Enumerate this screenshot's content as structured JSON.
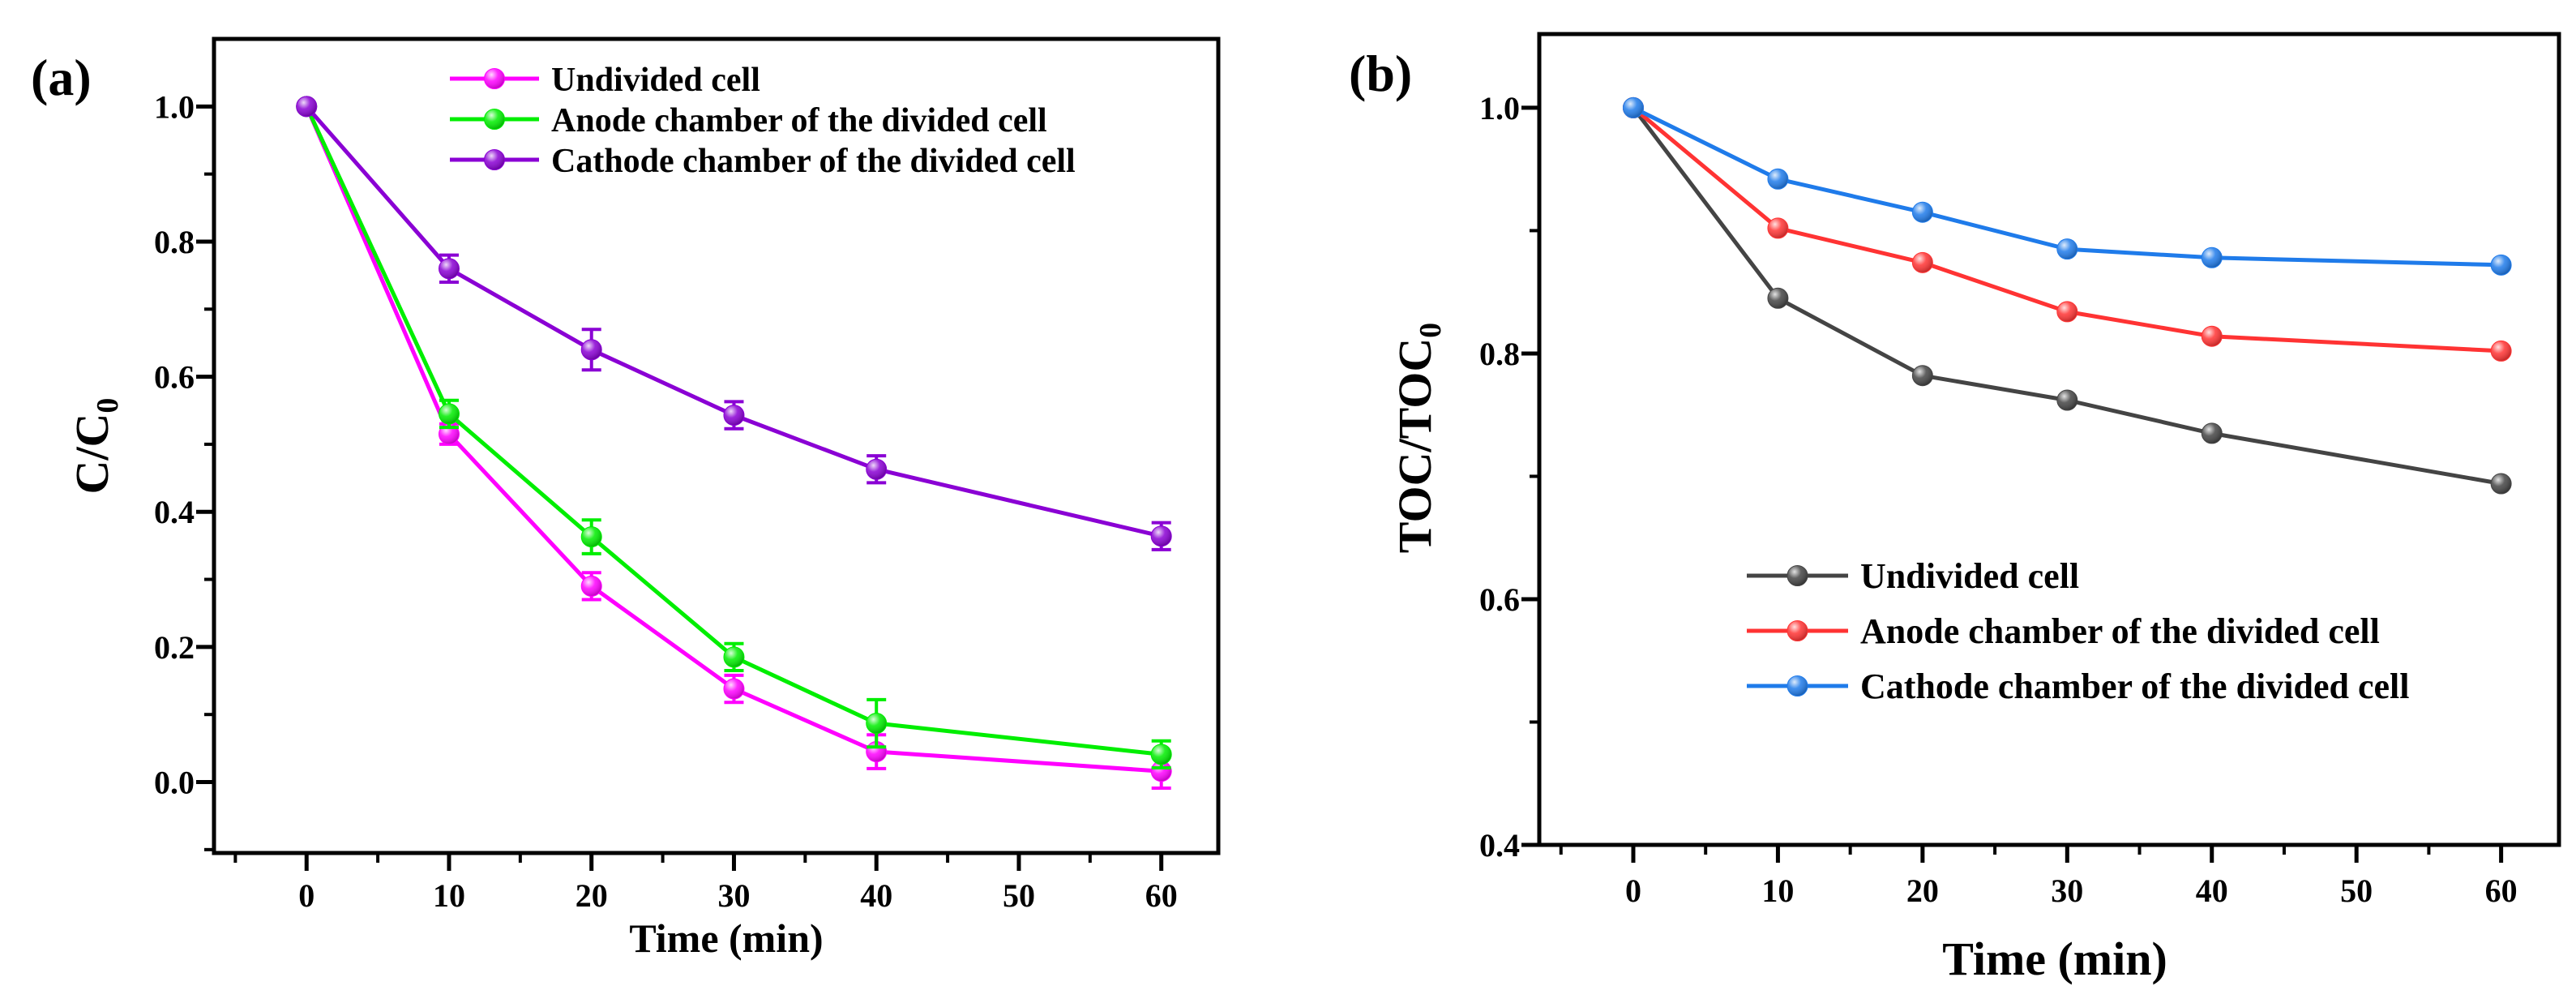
{
  "chart_data": [
    {
      "type": "line",
      "panel_label": "(a)",
      "xlabel": "Time (min)",
      "ylabel": "C/C",
      "ylabel_sub": "0",
      "xlim": [
        -6.5,
        64
      ],
      "ylim": [
        -0.105,
        1.1
      ],
      "xticks": [
        0,
        10,
        20,
        30,
        40,
        50,
        60
      ],
      "yticks": [
        0.0,
        0.2,
        0.4,
        0.6,
        0.8,
        1.0
      ],
      "ytick_labels": [
        "0.0",
        "0.2",
        "0.4",
        "0.6",
        "0.8",
        "1.0"
      ],
      "legend_position": "top",
      "x": [
        0,
        10,
        20,
        30,
        40,
        60
      ],
      "series": [
        {
          "name": "Undivided cell",
          "color": "#ff00ff",
          "values": [
            1.0,
            0.515,
            0.29,
            0.138,
            0.045,
            0.016
          ],
          "errors": [
            0,
            0.015,
            0.02,
            0.02,
            0.025,
            0.025
          ]
        },
        {
          "name": "Anode chamber of the divided cell",
          "color": "#00ee00",
          "values": [
            1.0,
            0.545,
            0.363,
            0.185,
            0.087,
            0.041
          ],
          "errors": [
            0,
            0.02,
            0.025,
            0.02,
            0.035,
            0.02
          ]
        },
        {
          "name": "Cathode chamber of the divided cell",
          "color": "#8a00d4",
          "values": [
            1.0,
            0.76,
            0.64,
            0.543,
            0.463,
            0.364
          ],
          "errors": [
            0,
            0.02,
            0.03,
            0.02,
            0.02,
            0.02
          ]
        }
      ]
    },
    {
      "type": "line",
      "panel_label": "(b)",
      "xlabel": "Time (min)",
      "ylabel": "TOC/TOC",
      "ylabel_sub": "0",
      "xlim": [
        -6.5,
        64
      ],
      "ylim": [
        0.4,
        1.06
      ],
      "xticks": [
        0,
        10,
        20,
        30,
        40,
        50,
        60
      ],
      "yticks": [
        0.4,
        0.6,
        0.8,
        1.0
      ],
      "ytick_labels": [
        "0.4",
        "0.6",
        "0.8",
        "1.0"
      ],
      "legend_position": "bottom-center",
      "x": [
        0,
        10,
        20,
        30,
        40,
        60
      ],
      "series": [
        {
          "name": "Undivided cell",
          "color": "#444444",
          "values": [
            1.0,
            0.845,
            0.782,
            0.762,
            0.735,
            0.694
          ]
        },
        {
          "name": "Anode chamber of the divided cell",
          "color": "#ff3333",
          "values": [
            1.0,
            0.902,
            0.874,
            0.834,
            0.814,
            0.802
          ]
        },
        {
          "name": "Cathode chamber of the divided cell",
          "color": "#1f7bea",
          "values": [
            1.0,
            0.942,
            0.915,
            0.885,
            0.878,
            0.872
          ]
        }
      ]
    }
  ]
}
